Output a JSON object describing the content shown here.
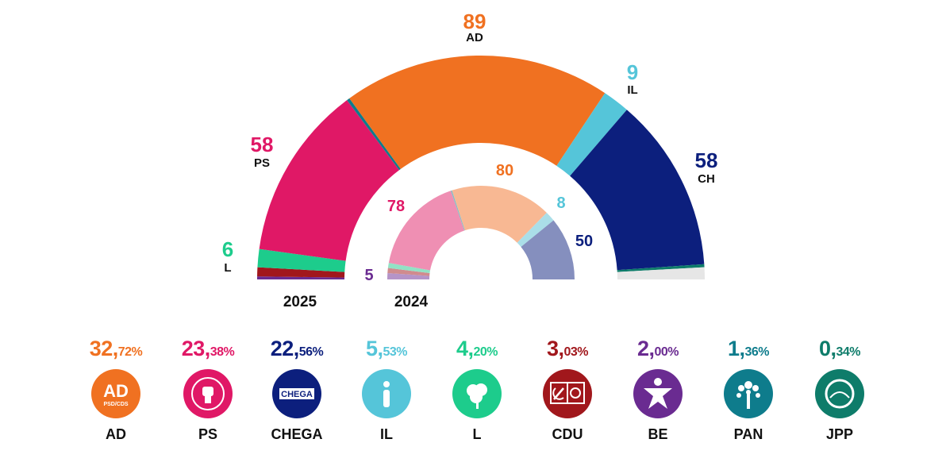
{
  "chart_data": {
    "type": "hemicycle",
    "title": "",
    "series": [
      {
        "name": "2025",
        "seats": [
          {
            "party": "AD",
            "value": 89,
            "label": "AD",
            "color": "#f07121"
          },
          {
            "party": "PS",
            "value": 58,
            "label": "PS",
            "color": "#e01866"
          },
          {
            "party": "CH",
            "value": 58,
            "label": "CH",
            "color": "#0c1f7d"
          },
          {
            "party": "IL",
            "value": 9,
            "label": "IL",
            "color": "#55c5d9"
          },
          {
            "party": "L",
            "value": 6,
            "label": "L",
            "color": "#1dcc8c"
          },
          {
            "party": "CDU",
            "value": 3,
            "label": "",
            "color": "#a1171c"
          },
          {
            "party": "BE",
            "value": 1,
            "label": "",
            "color": "#6a2b91"
          },
          {
            "party": "PAN",
            "value": 1,
            "label": "",
            "color": "#0e7c8c"
          },
          {
            "party": "JPP",
            "value": 1,
            "label": "",
            "color": "#0e7c6a"
          },
          {
            "party": "undecided",
            "value": 4,
            "label": "",
            "color": "#e6e6e6"
          }
        ]
      },
      {
        "name": "2024",
        "seats": [
          {
            "party": "AD",
            "value": 80,
            "color": "#f8b893"
          },
          {
            "party": "PS",
            "value": 78,
            "color": "#ef8fb3"
          },
          {
            "party": "CH",
            "value": 50,
            "color": "#858fbe"
          },
          {
            "party": "IL",
            "value": 8,
            "color": "#aadee8"
          },
          {
            "party": "L",
            "value": 4,
            "color": "#92e2c5"
          },
          {
            "party": "CDU",
            "value": 4,
            "color": "#d08b8e"
          },
          {
            "party": "BE",
            "value": 5,
            "color": "#b594c8"
          },
          {
            "party": "PAN",
            "value": 1,
            "color": "#87bdc5"
          }
        ]
      }
    ],
    "visible_labels_2025": [
      {
        "party": "AD",
        "num": "89",
        "label": "AD"
      },
      {
        "party": "PS",
        "num": "58",
        "label": "PS"
      },
      {
        "party": "CH",
        "num": "58",
        "label": "CH"
      },
      {
        "party": "IL",
        "num": "9",
        "label": "IL"
      },
      {
        "party": "L",
        "num": "6",
        "label": "L"
      }
    ],
    "visible_labels_2024": [
      {
        "party": "PS",
        "num": "78"
      },
      {
        "party": "AD",
        "num": "80"
      },
      {
        "party": "IL",
        "num": "8"
      },
      {
        "party": "CH",
        "num": "50"
      },
      {
        "party": "BE",
        "num": "5"
      }
    ],
    "year_labels": [
      "2025",
      "2024"
    ]
  },
  "legend": [
    {
      "party": "AD",
      "pct_int": "32,",
      "pct_dec": "72%",
      "name": "AD",
      "color": "#f07121",
      "icon": "ad-logo-icon",
      "logo_text": "AD",
      "logo_sub": "PSD/CDS"
    },
    {
      "party": "PS",
      "pct_int": "23,",
      "pct_dec": "38%",
      "name": "PS",
      "color": "#e01866",
      "icon": "ps-fist-logo-icon"
    },
    {
      "party": "CHEGA",
      "pct_int": "22,",
      "pct_dec": "56%",
      "name": "CHEGA",
      "color": "#0c1f7d",
      "icon": "chega-logo-icon",
      "logo_text": "CHEGA"
    },
    {
      "party": "IL",
      "pct_int": "5,",
      "pct_dec": "53%",
      "name": "IL",
      "color": "#55c5d9",
      "icon": "il-logo-icon"
    },
    {
      "party": "L",
      "pct_int": "4,",
      "pct_dec": "20%",
      "name": "L",
      "color": "#1dcc8c",
      "icon": "livre-poppy-logo-icon"
    },
    {
      "party": "CDU",
      "pct_int": "3,",
      "pct_dec": "03%",
      "name": "CDU",
      "color": "#a1171c",
      "icon": "cdu-hammer-sickle-logo-icon"
    },
    {
      "party": "BE",
      "pct_int": "2,",
      "pct_dec": "00%",
      "name": "BE",
      "color": "#6a2b91",
      "icon": "be-star-figure-logo-icon"
    },
    {
      "party": "PAN",
      "pct_int": "1,",
      "pct_dec": "36%",
      "name": "PAN",
      "color": "#0e7c8c",
      "icon": "pan-tree-logo-icon"
    },
    {
      "party": "JPP",
      "pct_int": "0,",
      "pct_dec": "34%",
      "name": "JPP",
      "color": "#0e7c6a",
      "icon": "jpp-circle-logo-icon"
    }
  ]
}
